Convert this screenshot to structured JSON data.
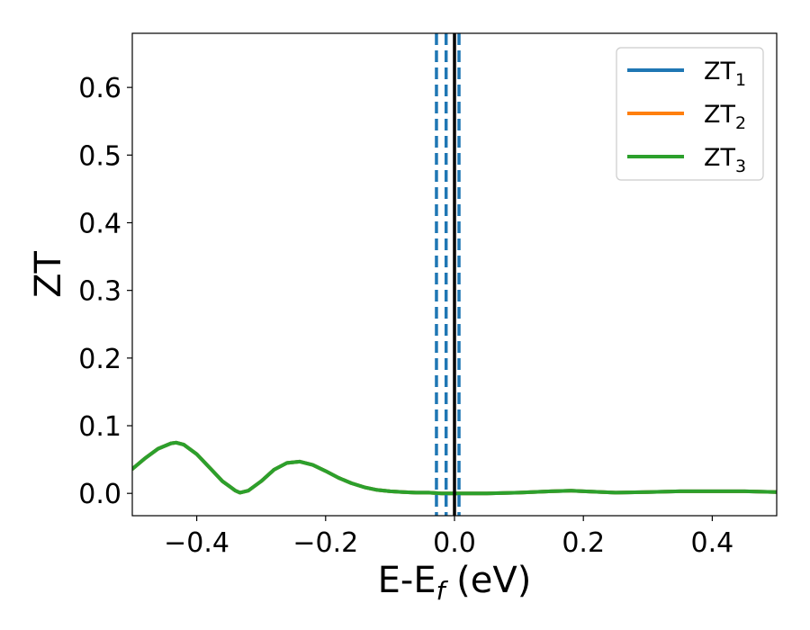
{
  "chart_data": {
    "type": "line",
    "title": "",
    "xlabel": {
      "main": "E-E",
      "sub": "f",
      "suffix": " (eV)"
    },
    "ylabel": "ZT",
    "xlim": [
      -0.5,
      0.5
    ],
    "ylim": [
      -0.033,
      0.68
    ],
    "xticks": [
      -0.4,
      -0.2,
      0.0,
      0.2,
      0.4
    ],
    "xtick_labels": [
      "−0.4",
      "−0.2",
      "0.0",
      "0.2",
      "0.4"
    ],
    "yticks": [
      0.0,
      0.1,
      0.2,
      0.3,
      0.4,
      0.5,
      0.6
    ],
    "ytick_labels": [
      "0.0",
      "0.1",
      "0.2",
      "0.3",
      "0.4",
      "0.5",
      "0.6"
    ],
    "grid": false,
    "legend_position": "top-right",
    "vertical_lines": [
      {
        "x": -0.028,
        "style": "dashed",
        "color": "#1f77b4"
      },
      {
        "x": -0.013,
        "style": "dashed",
        "color": "#1f77b4"
      },
      {
        "x": 0.007,
        "style": "dashed",
        "color": "#1f77b4"
      },
      {
        "x": 0.0,
        "style": "solid",
        "color": "#000000"
      }
    ],
    "series": [
      {
        "name": "ZT",
        "sub": "1",
        "color": "#1f77b4",
        "x": [
          -0.5,
          -0.48,
          -0.46,
          -0.44,
          -0.432,
          -0.42,
          -0.4,
          -0.38,
          -0.36,
          -0.34,
          -0.333,
          -0.32,
          -0.3,
          -0.28,
          -0.26,
          -0.24,
          -0.22,
          -0.2,
          -0.18,
          -0.16,
          -0.14,
          -0.12,
          -0.1,
          -0.08,
          -0.06,
          -0.04,
          -0.02,
          0.0,
          0.05,
          0.1,
          0.15,
          0.18,
          0.2,
          0.25,
          0.3,
          0.35,
          0.4,
          0.45,
          0.5
        ],
        "y": [
          0.036,
          0.052,
          0.066,
          0.074,
          0.075,
          0.072,
          0.058,
          0.038,
          0.018,
          0.004,
          0.001,
          0.004,
          0.018,
          0.035,
          0.045,
          0.047,
          0.042,
          0.033,
          0.023,
          0.015,
          0.009,
          0.005,
          0.003,
          0.002,
          0.001,
          0.001,
          0.0,
          0.0,
          0.0,
          0.001,
          0.003,
          0.004,
          0.003,
          0.001,
          0.002,
          0.003,
          0.003,
          0.003,
          0.002
        ]
      },
      {
        "name": "ZT",
        "sub": "2",
        "color": "#ff7f0e",
        "x": [
          -0.5,
          -0.48,
          -0.46,
          -0.44,
          -0.432,
          -0.42,
          -0.4,
          -0.38,
          -0.36,
          -0.34,
          -0.333,
          -0.32,
          -0.3,
          -0.28,
          -0.26,
          -0.24,
          -0.22,
          -0.2,
          -0.18,
          -0.16,
          -0.14,
          -0.12,
          -0.1,
          -0.08,
          -0.06,
          -0.04,
          -0.02,
          0.0,
          0.05,
          0.1,
          0.15,
          0.18,
          0.2,
          0.25,
          0.3,
          0.35,
          0.4,
          0.45,
          0.5
        ],
        "y": [
          0.036,
          0.052,
          0.066,
          0.074,
          0.075,
          0.072,
          0.058,
          0.038,
          0.018,
          0.004,
          0.001,
          0.004,
          0.018,
          0.035,
          0.045,
          0.047,
          0.042,
          0.033,
          0.023,
          0.015,
          0.009,
          0.005,
          0.003,
          0.002,
          0.001,
          0.001,
          0.0,
          0.0,
          0.0,
          0.001,
          0.003,
          0.004,
          0.003,
          0.001,
          0.002,
          0.003,
          0.003,
          0.003,
          0.002
        ]
      },
      {
        "name": "ZT",
        "sub": "3",
        "color": "#2ca02c",
        "x": [
          -0.5,
          -0.48,
          -0.46,
          -0.44,
          -0.432,
          -0.42,
          -0.4,
          -0.38,
          -0.36,
          -0.34,
          -0.333,
          -0.32,
          -0.3,
          -0.28,
          -0.26,
          -0.24,
          -0.22,
          -0.2,
          -0.18,
          -0.16,
          -0.14,
          -0.12,
          -0.1,
          -0.08,
          -0.06,
          -0.04,
          -0.02,
          0.0,
          0.05,
          0.1,
          0.15,
          0.18,
          0.2,
          0.25,
          0.3,
          0.35,
          0.4,
          0.45,
          0.5
        ],
        "y": [
          0.036,
          0.052,
          0.066,
          0.074,
          0.075,
          0.072,
          0.058,
          0.038,
          0.018,
          0.004,
          0.001,
          0.004,
          0.018,
          0.035,
          0.045,
          0.047,
          0.042,
          0.033,
          0.023,
          0.015,
          0.009,
          0.005,
          0.003,
          0.002,
          0.001,
          0.001,
          0.0,
          0.0,
          0.0,
          0.001,
          0.003,
          0.004,
          0.003,
          0.001,
          0.002,
          0.003,
          0.003,
          0.003,
          0.002
        ]
      }
    ]
  }
}
